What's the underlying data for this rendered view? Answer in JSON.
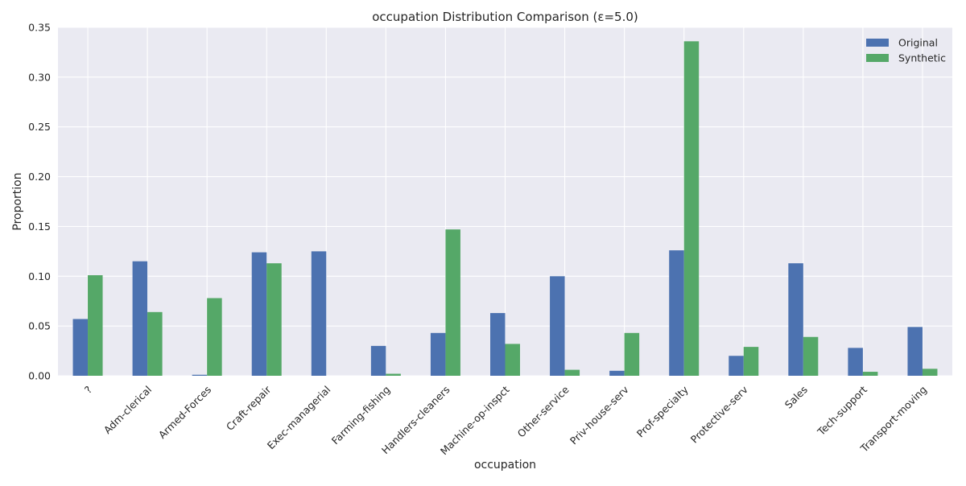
{
  "chart_data": {
    "type": "bar",
    "title": "occupation Distribution Comparison (ε=5.0)",
    "xlabel": "occupation",
    "ylabel": "Proportion",
    "ylim": [
      0,
      0.35
    ],
    "yticks": [
      0.0,
      0.05,
      0.1,
      0.15,
      0.2,
      0.25,
      0.3,
      0.35
    ],
    "ytick_labels": [
      "0.00",
      "0.05",
      "0.10",
      "0.15",
      "0.20",
      "0.25",
      "0.30",
      "0.35"
    ],
    "grid": true,
    "legend_position": "top-right",
    "categories": [
      "?",
      "Adm-clerical",
      "Armed-Forces",
      "Craft-repair",
      "Exec-managerial",
      "Farming-fishing",
      "Handlers-cleaners",
      "Machine-op-inspct",
      "Other-service",
      "Priv-house-serv",
      "Prof-specialty",
      "Protective-serv",
      "Sales",
      "Tech-support",
      "Transport-moving"
    ],
    "series": [
      {
        "name": "Original",
        "color": "#4c72b0",
        "values": [
          0.057,
          0.115,
          0.001,
          0.124,
          0.125,
          0.03,
          0.043,
          0.063,
          0.1,
          0.005,
          0.126,
          0.02,
          0.113,
          0.028,
          0.049
        ]
      },
      {
        "name": "Synthetic",
        "color": "#55a868",
        "values": [
          0.101,
          0.064,
          0.078,
          0.113,
          0.0,
          0.002,
          0.147,
          0.032,
          0.006,
          0.043,
          0.336,
          0.029,
          0.039,
          0.004,
          0.007
        ]
      }
    ],
    "colors": {
      "plot_background": "#eaeaf2",
      "grid": "#ffffff"
    }
  }
}
